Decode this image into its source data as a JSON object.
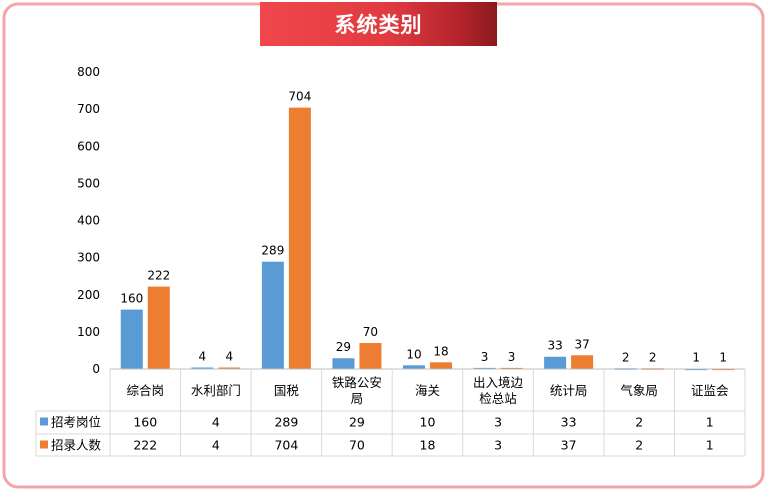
{
  "chart_data": {
    "type": "bar",
    "title": "系统类别",
    "categories": [
      [
        "综合岗"
      ],
      [
        "水利部门"
      ],
      [
        "国税"
      ],
      [
        "铁路公安",
        "局"
      ],
      [
        "海关"
      ],
      [
        "出入境边",
        "检总站"
      ],
      [
        "统计局"
      ],
      [
        "气象局"
      ],
      [
        "证监会"
      ]
    ],
    "series": [
      {
        "name": "招考岗位",
        "color": "#5b9bd5",
        "values": [
          160,
          4,
          289,
          29,
          10,
          3,
          33,
          2,
          1
        ]
      },
      {
        "name": "招录人数",
        "color": "#ed7d31",
        "values": [
          222,
          4,
          704,
          70,
          18,
          3,
          37,
          2,
          1
        ]
      }
    ],
    "ylim": [
      0,
      800
    ],
    "yticks": [
      0,
      100,
      200,
      300,
      400,
      500,
      600,
      700,
      800
    ],
    "legend": "data-table"
  },
  "colors": {
    "frame_border": "#f4a6a6",
    "banner": "#e03a40"
  }
}
